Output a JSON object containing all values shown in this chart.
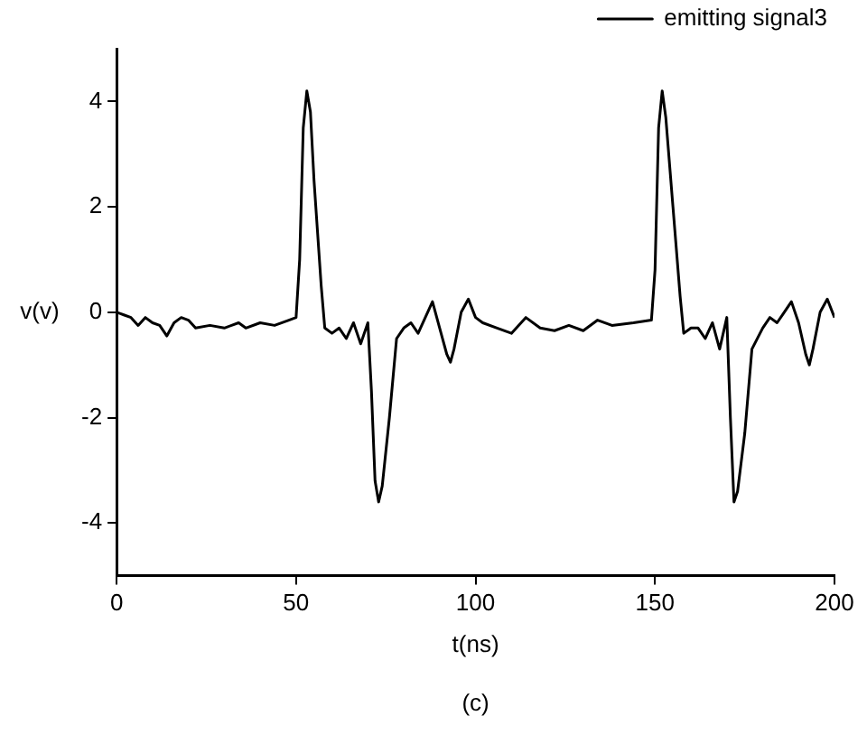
{
  "chart_data": {
    "type": "line",
    "xlabel": "t(ns)",
    "ylabel": "v(v)",
    "annotations": [
      "(c)"
    ],
    "legend": "top right",
    "grid": false,
    "marker": "none",
    "line_style": "solid",
    "xlim": [
      0,
      200
    ],
    "xticks": [
      0,
      50,
      100,
      150,
      200
    ],
    "ylim": [
      -5,
      5
    ],
    "yticks": [
      -4,
      -2,
      0,
      2,
      4
    ],
    "series": [
      {
        "name": "emitting signal3",
        "color": "#000000",
        "x": [
          0,
          2,
          4,
          6,
          8,
          10,
          12,
          14,
          16,
          18,
          20,
          22,
          26,
          30,
          34,
          36,
          40,
          44,
          48,
          50,
          51,
          52,
          53,
          54,
          55,
          57,
          58,
          60,
          62,
          64,
          66,
          68,
          70,
          71,
          72,
          73,
          74,
          76,
          78,
          80,
          82,
          84,
          86,
          88,
          90,
          92,
          93,
          94,
          96,
          98,
          100,
          102,
          106,
          110,
          114,
          118,
          122,
          126,
          130,
          134,
          138,
          144,
          149,
          150,
          151,
          152,
          153,
          155,
          157,
          158,
          160,
          162,
          164,
          166,
          168,
          170,
          171,
          172,
          173,
          175,
          177,
          180,
          182,
          184,
          186,
          188,
          190,
          192,
          193,
          194,
          196,
          198,
          200
        ],
        "values": [
          0,
          -0.05,
          -0.1,
          -0.25,
          -0.1,
          -0.2,
          -0.25,
          -0.45,
          -0.2,
          -0.1,
          -0.15,
          -0.3,
          -0.25,
          -0.3,
          -0.2,
          -0.3,
          -0.2,
          -0.25,
          -0.15,
          -0.1,
          1,
          3.5,
          4.2,
          3.8,
          2.5,
          0.5,
          -0.3,
          -0.4,
          -0.3,
          -0.5,
          -0.2,
          -0.6,
          -0.2,
          -1.5,
          -3.2,
          -3.6,
          -3.3,
          -2,
          -0.5,
          -0.3,
          -0.2,
          -0.4,
          -0.1,
          0.2,
          -0.3,
          -0.8,
          -0.95,
          -0.7,
          0,
          0.25,
          -0.1,
          -0.2,
          -0.3,
          -0.4,
          -0.1,
          -0.3,
          -0.35,
          -0.25,
          -0.35,
          -0.15,
          -0.25,
          -0.2,
          -0.15,
          0.8,
          3.5,
          4.2,
          3.7,
          2,
          0.3,
          -0.4,
          -0.3,
          -0.3,
          -0.5,
          -0.2,
          -0.7,
          -0.1,
          -2,
          -3.6,
          -3.4,
          -2.3,
          -0.7,
          -0.3,
          -0.1,
          -0.2,
          0,
          0.2,
          -0.2,
          -0.8,
          -1,
          -0.7,
          0,
          0.25,
          -0.1
        ]
      }
    ]
  }
}
